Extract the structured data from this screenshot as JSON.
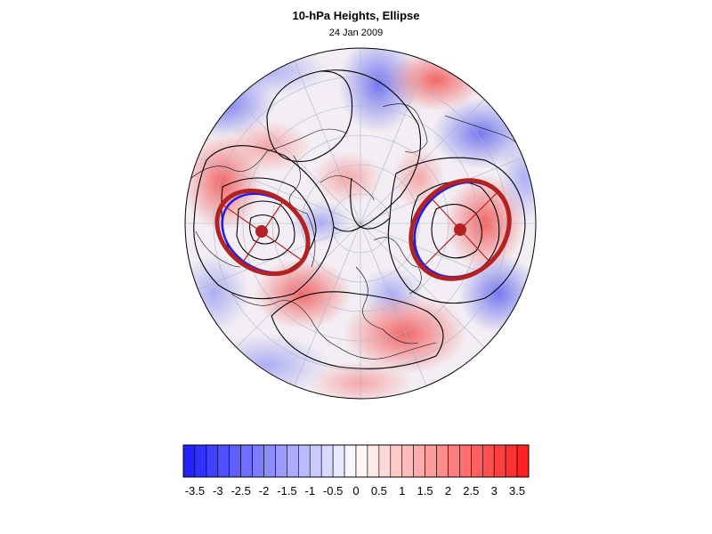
{
  "title": "10-hPa Heights, Ellipse",
  "subtitle": "24 Jan 2009",
  "colorbar": {
    "tick_labels": [
      "-3.5",
      "-3",
      "-2.5",
      "-2",
      "-1.5",
      "-1",
      "-0.5",
      "0",
      "0.5",
      "1",
      "1.5",
      "2",
      "2.5",
      "3",
      "3.5"
    ],
    "min_color": "#1a1aff",
    "mid_color": "#ffffff",
    "max_color": "#ff1a1a",
    "num_boxes": 30
  },
  "colors": {
    "ellipse_ring": "#b22222",
    "ellipse_center": "#b22222",
    "contour": "#000000",
    "inner_ellipse_edge": "#1a1aff"
  }
}
